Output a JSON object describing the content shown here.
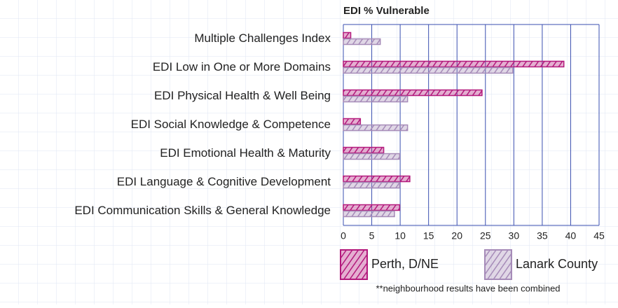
{
  "chart_data": {
    "type": "hbar",
    "title": "EDI % Vulnerable",
    "categories": [
      "Multiple Challenges Index",
      "EDI Low in One or More Domains",
      "EDI Physical Health & Well Being",
      "EDI Social Knowledge & Competence",
      "EDI Emotional Health & Maturity",
      "EDI Language & Cognitive Development",
      "EDI Communication Skills & General Knowledge"
    ],
    "series": [
      {
        "name": "Perth, D/NE",
        "color": "#b3197c",
        "values": [
          1.3,
          38.8,
          24.4,
          3.0,
          7.1,
          11.7,
          9.9
        ]
      },
      {
        "name": "Lanark County",
        "color": "#a68bb8",
        "values": [
          6.5,
          29.8,
          11.3,
          11.3,
          9.9,
          9.9,
          9.0
        ]
      }
    ],
    "xlim": [
      0,
      45
    ],
    "xticks": [
      0,
      5,
      10,
      15,
      20,
      25,
      30,
      35,
      40,
      45
    ],
    "grid": true,
    "footnote": "**neighbourhood results have been combined"
  }
}
